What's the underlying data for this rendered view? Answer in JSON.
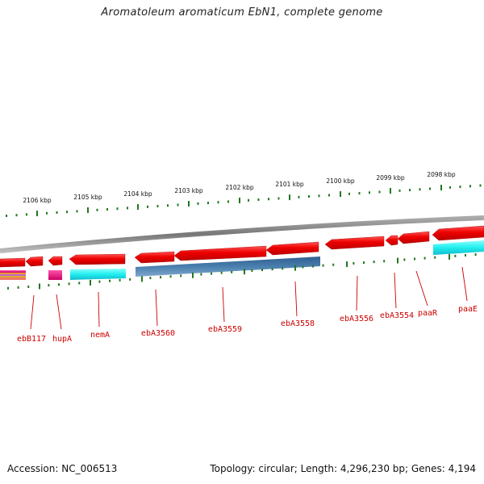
{
  "title": "Aromatoleum aromaticum EbN1, complete genome",
  "footer": {
    "accession": "Accession: NC_006513",
    "summary": "Topology: circular; Length: 4,296,230 bp; Genes: 4,194"
  },
  "colors": {
    "forward_gene": "#ee1111",
    "reverse_gene_cyan": "#22eeee",
    "reverse_gene_blue": "#4a7fae",
    "magenta": "#ee1188",
    "backbone": "#888888",
    "ruler": "#227722",
    "label": "#cc0000"
  },
  "ruler": {
    "unit": "kbp",
    "ticks": [
      {
        "label": "2106 kbp"
      },
      {
        "label": "2105 kbp"
      },
      {
        "label": "2104 kbp"
      },
      {
        "label": "2103 kbp"
      },
      {
        "label": "2102 kbp"
      },
      {
        "label": "2101 kbp"
      },
      {
        "label": "2100 kbp"
      },
      {
        "label": "2099 kbp"
      },
      {
        "label": "2098 kbp"
      }
    ]
  },
  "gene_labels": [
    "ebB117",
    "hupA",
    "nemA",
    "ebA3560",
    "ebA3559",
    "ebA3558",
    "ebA3556",
    "ebA3554",
    "paaR",
    "paaE"
  ]
}
